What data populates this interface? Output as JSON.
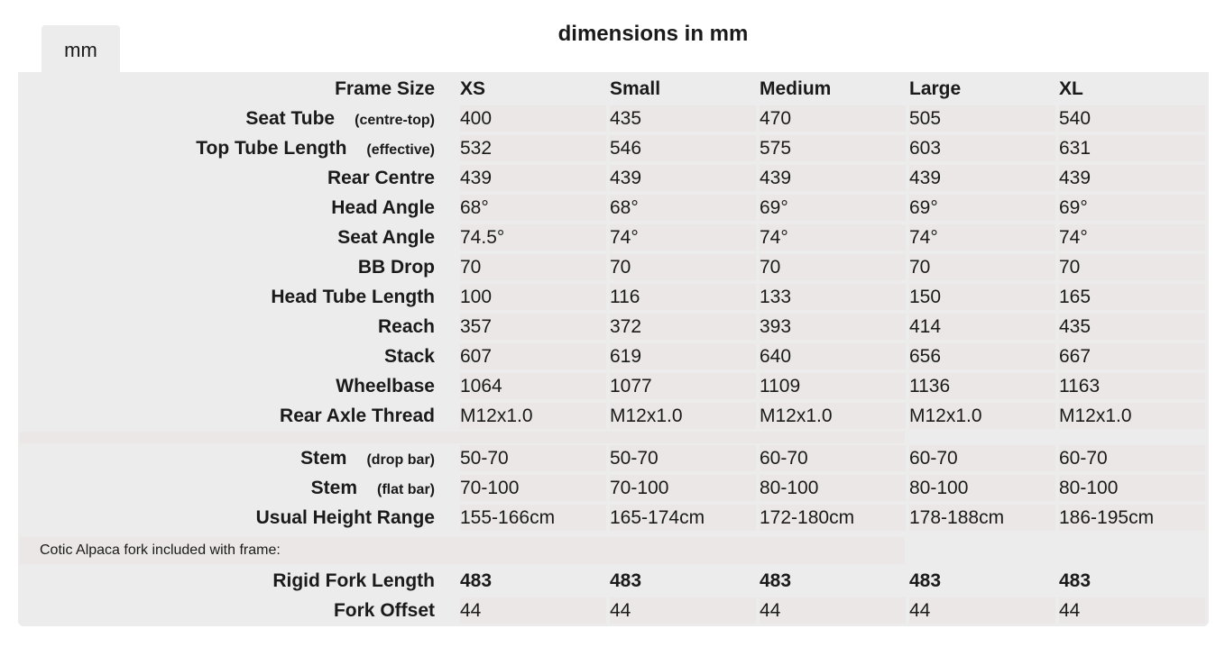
{
  "tab": {
    "label": "mm"
  },
  "title": "dimensions in mm",
  "sizes": [
    "XS",
    "Small",
    "Medium",
    "Large",
    "XL"
  ],
  "header_label": "Frame Size",
  "geometry": [
    {
      "label": "Seat Tube",
      "sub": "(centre-top)",
      "values": [
        "400",
        "435",
        "470",
        "505",
        "540"
      ]
    },
    {
      "label": "Top Tube Length",
      "sub": "(effective)",
      "values": [
        "532",
        "546",
        "575",
        "603",
        "631"
      ]
    },
    {
      "label": "Rear Centre",
      "values": [
        "439",
        "439",
        "439",
        "439",
        "439"
      ]
    },
    {
      "label": "Head Angle",
      "values": [
        "68°",
        "68°",
        "69°",
        "69°",
        "69°"
      ]
    },
    {
      "label": "Seat Angle",
      "values": [
        "74.5°",
        "74°",
        "74°",
        "74°",
        "74°"
      ]
    },
    {
      "label": "BB Drop",
      "values": [
        "70",
        "70",
        "70",
        "70",
        "70"
      ]
    },
    {
      "label": "Head Tube Length",
      "values": [
        "100",
        "116",
        "133",
        "150",
        "165"
      ]
    },
    {
      "label": "Reach",
      "values": [
        "357",
        "372",
        "393",
        "414",
        "435"
      ]
    },
    {
      "label": "Stack",
      "values": [
        "607",
        "619",
        "640",
        "656",
        "667"
      ]
    },
    {
      "label": "Wheelbase",
      "values": [
        "1064",
        "1077",
        "1109",
        "1136",
        "1163"
      ]
    },
    {
      "label": "Rear Axle Thread",
      "values": [
        "M12x1.0",
        "M12x1.0",
        "M12x1.0",
        "M12x1.0",
        "M12x1.0"
      ]
    }
  ],
  "fit": [
    {
      "label": "Stem",
      "sub": "(drop bar)",
      "values": [
        "50-70",
        "50-70",
        "60-70",
        "60-70",
        "60-70"
      ]
    },
    {
      "label": "Stem",
      "sub": "(flat bar)",
      "values": [
        "70-100",
        "70-100",
        "80-100",
        "80-100",
        "80-100"
      ]
    },
    {
      "label": "Usual Height Range",
      "values": [
        "155-166cm",
        "165-174cm",
        "172-180cm",
        "178-188cm",
        "186-195cm"
      ]
    }
  ],
  "fork_note": "Cotic Alpaca fork included with frame:",
  "fork": [
    {
      "label": "Rigid Fork Length",
      "values": [
        "483",
        "483",
        "483",
        "483",
        "483"
      ],
      "bold": true
    },
    {
      "label": "Fork Offset",
      "values": [
        "44",
        "44",
        "44",
        "44",
        "44"
      ]
    }
  ]
}
